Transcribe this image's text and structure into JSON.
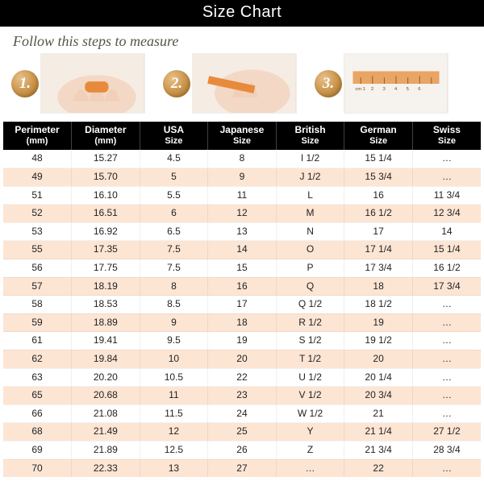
{
  "title": "Size Chart",
  "instructions_text": "Follow this steps to measure",
  "steps": [
    "1.",
    "2.",
    "3."
  ],
  "colors": {
    "title_bg": "#000000",
    "title_fg": "#ffffff",
    "header_bg": "#000000",
    "header_fg": "#ffffff",
    "row_even_bg": "#ffffff",
    "row_odd_bg": "#fde5d4",
    "badge_gradient": [
      "#e8c088",
      "#c89248",
      "#a57228"
    ],
    "instructions_fg": "#555544"
  },
  "typography": {
    "title_fontsize": 20,
    "instructions_fontsize": 18,
    "header_fontsize": 12,
    "cell_fontsize": 12
  },
  "table": {
    "columns": [
      {
        "label": "Perimeter",
        "unit": "(mm)"
      },
      {
        "label": "Diameter",
        "unit": "(mm)"
      },
      {
        "label": "USA",
        "unit": "Size"
      },
      {
        "label": "Japanese",
        "unit": "Size"
      },
      {
        "label": "British",
        "unit": "Size"
      },
      {
        "label": "German",
        "unit": "Size"
      },
      {
        "label": "Swiss",
        "unit": "Size"
      }
    ],
    "rows": [
      [
        "48",
        "15.27",
        "4.5",
        "8",
        "I 1/2",
        "15 1/4",
        "…"
      ],
      [
        "49",
        "15.70",
        "5",
        "9",
        "J 1/2",
        "15 3/4",
        "…"
      ],
      [
        "51",
        "16.10",
        "5.5",
        "11",
        "L",
        "16",
        "11 3/4"
      ],
      [
        "52",
        "16.51",
        "6",
        "12",
        "M",
        "16 1/2",
        "12 3/4"
      ],
      [
        "53",
        "16.92",
        "6.5",
        "13",
        "N",
        "17",
        "14"
      ],
      [
        "55",
        "17.35",
        "7.5",
        "14",
        "O",
        "17 1/4",
        "15 1/4"
      ],
      [
        "56",
        "17.75",
        "7.5",
        "15",
        "P",
        "17 3/4",
        "16 1/2"
      ],
      [
        "57",
        "18.19",
        "8",
        "16",
        "Q",
        "18",
        "17 3/4"
      ],
      [
        "58",
        "18.53",
        "8.5",
        "17",
        "Q 1/2",
        "18 1/2",
        "…"
      ],
      [
        "59",
        "18.89",
        "9",
        "18",
        "R 1/2",
        "19",
        "…"
      ],
      [
        "61",
        "19.41",
        "9.5",
        "19",
        "S 1/2",
        "19 1/2",
        "…"
      ],
      [
        "62",
        "19.84",
        "10",
        "20",
        "T 1/2",
        "20",
        "…"
      ],
      [
        "63",
        "20.20",
        "10.5",
        "22",
        "U 1/2",
        "20 1/4",
        "…"
      ],
      [
        "65",
        "20.68",
        "11",
        "23",
        "V 1/2",
        "20 3/4",
        "…"
      ],
      [
        "66",
        "21.08",
        "11.5",
        "24",
        "W 1/2",
        "21",
        "…"
      ],
      [
        "68",
        "21.49",
        "12",
        "25",
        "Y",
        "21 1/4",
        "27 1/2"
      ],
      [
        "69",
        "21.89",
        "12.5",
        "26",
        "Z",
        "21 3/4",
        "28 3/4"
      ],
      [
        "70",
        "22.33",
        "13",
        "27",
        "…",
        "22",
        "…"
      ]
    ]
  }
}
